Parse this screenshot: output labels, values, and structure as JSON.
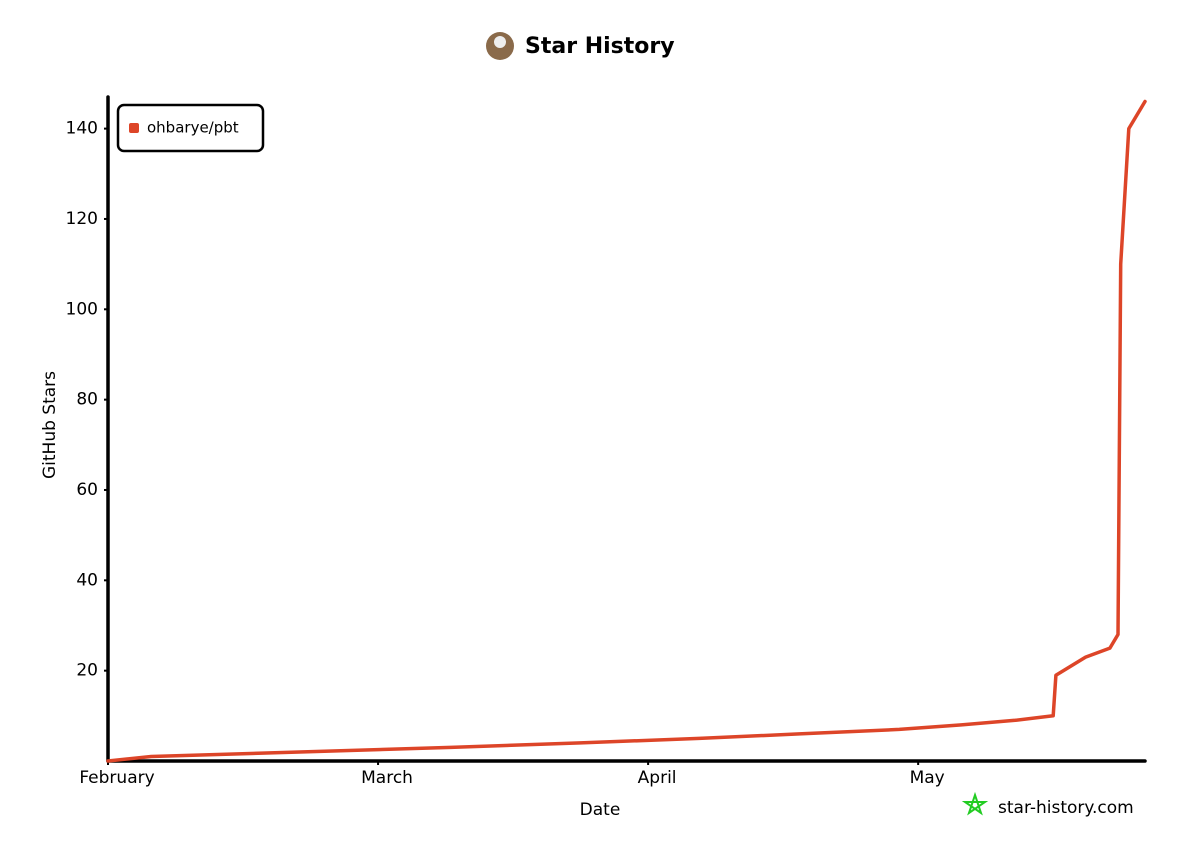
{
  "chart_data": {
    "type": "line",
    "title": "Star History",
    "x_label": "Date",
    "y_label": "GitHub Stars",
    "watermark": "star-history.com",
    "x": [
      0,
      0.16,
      0.71,
      1.27,
      1.75,
      2.19,
      2.56,
      2.93,
      3.16,
      3.36,
      3.5,
      3.51,
      3.62,
      3.71,
      3.74,
      3.75,
      3.78,
      3.84
    ],
    "series": [
      {
        "name": "ohbarye/pbt",
        "color": "#dd4528",
        "values": [
          0,
          1,
          2,
          3,
          4,
          5,
          6,
          7,
          8,
          9,
          10,
          19,
          23,
          25,
          28,
          110,
          140,
          146
        ]
      }
    ],
    "xlim": [
      0,
      3.84
    ],
    "xticks": [
      {
        "value": 0,
        "label": "February"
      },
      {
        "value": 1,
        "label": "March"
      },
      {
        "value": 2,
        "label": "April"
      },
      {
        "value": 3,
        "label": "May"
      }
    ],
    "ylim": [
      0,
      147
    ],
    "yticks": [
      20,
      40,
      60,
      80,
      100,
      120,
      140
    ],
    "grid": false,
    "legend": "upper-left"
  }
}
